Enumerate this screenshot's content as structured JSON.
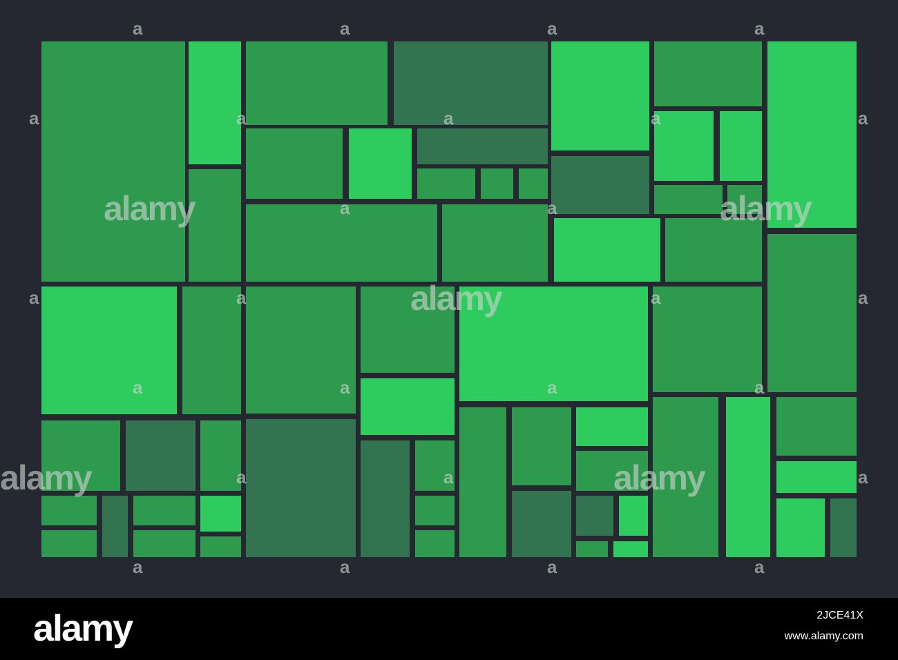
{
  "colors": {
    "background": "#252830",
    "bright_green": "#2ecb5e",
    "mid_green": "#2e9a4e",
    "dark_green": "#32744f",
    "footer": "#000000"
  },
  "watermark": {
    "text": "alamy",
    "small_mark": "a"
  },
  "footer": {
    "logo": "alamy",
    "image_id": "2JCE41X",
    "url": "www.alamy.com"
  }
}
